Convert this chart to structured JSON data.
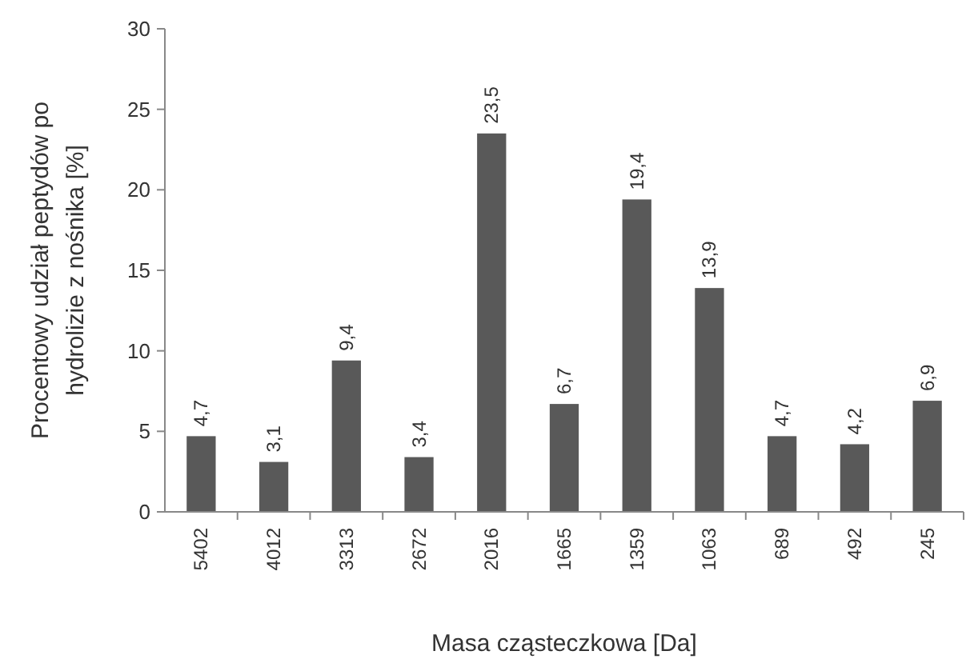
{
  "chart_data": {
    "type": "bar",
    "xlabel": "Masa cząsteczkowa [Da]",
    "ylabel": "Procentowy udział peptydów po hydrolizie z nośnika [%]",
    "categories": [
      "5402",
      "4012",
      "3313",
      "2672",
      "2016",
      "1665",
      "1359",
      "1063",
      "689",
      "492",
      "245"
    ],
    "values": [
      4.7,
      3.1,
      9.4,
      3.4,
      23.5,
      6.7,
      19.4,
      13.9,
      4.7,
      4.2,
      6.9
    ],
    "value_labels": [
      "4,7",
      "3,1",
      "9,4",
      "3,4",
      "23,5",
      "6,7",
      "19,4",
      "13,9",
      "4,7",
      "4,2",
      "6,9"
    ],
    "color": "#595959",
    "ylim": [
      0,
      30
    ],
    "yticks": [
      0,
      5,
      10,
      15,
      20,
      25,
      30
    ],
    "grid": false
  }
}
